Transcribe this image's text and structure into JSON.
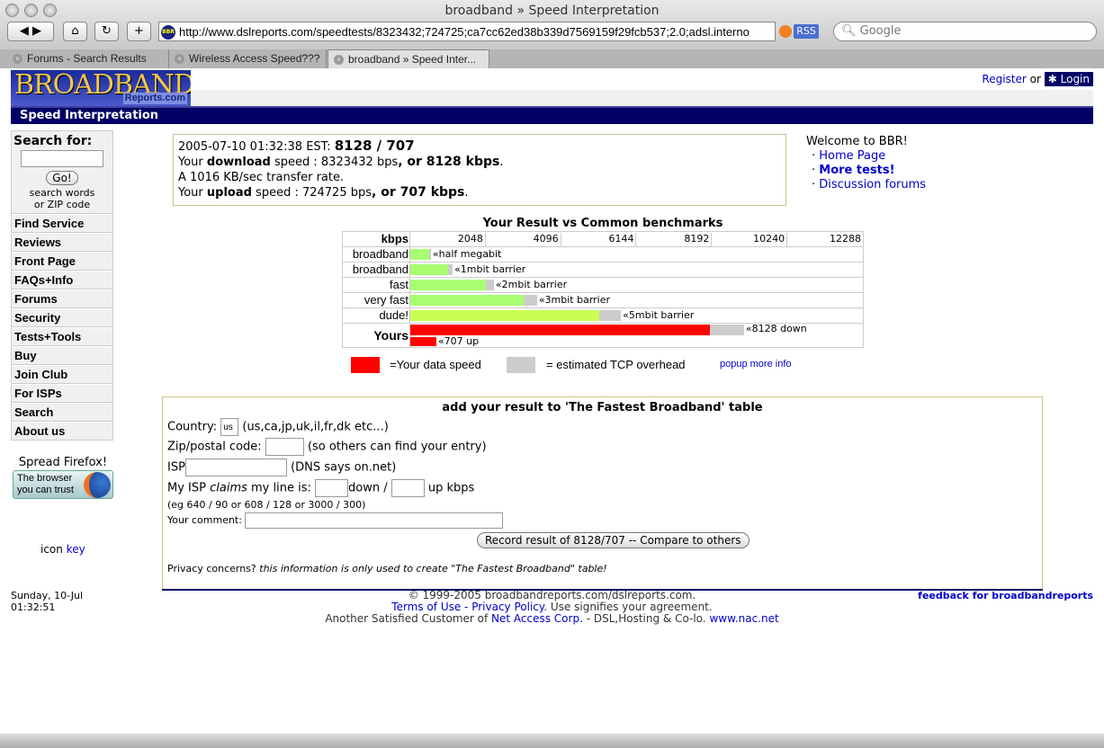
{
  "browser": {
    "title": "broadband » Speed Interpretation",
    "url": "http://www.dslreports.com/speedtests/8323432;724725;ca7cc62ed38b339d7569159f29fcb537;2.0;adsl.interno",
    "rss": "RSS",
    "search_placeholder": "Google",
    "site_icon": "BBR",
    "tabs": [
      {
        "label": "Forums - Search Results"
      },
      {
        "label": "Wireless Access Speed???"
      },
      {
        "label": "broadband » Speed Inter..."
      }
    ]
  },
  "header": {
    "logo_text": "BROADBAND",
    "logo_sub": "Reports.com",
    "page_title": "Speed Interpretation",
    "register": "Register",
    "or": "or",
    "login": "Login"
  },
  "sidebar": {
    "search_label": "Search for:",
    "go": "Go!",
    "hint1": "search words",
    "hint2": "or ZIP code",
    "items": [
      {
        "label": "Find Service"
      },
      {
        "label": "Reviews"
      },
      {
        "label": "Front Page"
      },
      {
        "label": "FAQs+Info"
      },
      {
        "label": "Forums"
      },
      {
        "label": "Security"
      },
      {
        "label": "Tests+Tools"
      },
      {
        "label": "Buy"
      },
      {
        "label": "Join Club"
      },
      {
        "label": "For ISPs"
      },
      {
        "label": "Search"
      },
      {
        "label": "About us"
      }
    ],
    "firefox_title": "Spread Firefox!",
    "firefox_line1": "The browser",
    "firefox_line2": "you can trust",
    "icon": "icon",
    "key": "key"
  },
  "result": {
    "timestamp": "2005-07-10 01:32:38 EST:",
    "summary": "8128 / 707",
    "dl_pre": "Your ",
    "dl_bold": "download",
    "dl_mid": " speed : 8323432 bps",
    "dl_end": ", or 8128 kbps",
    "rate": "A 1016 KB/sec transfer rate.",
    "ul_pre": "Your ",
    "ul_bold": "upload",
    "ul_mid": " speed : 724725 bps",
    "ul_end": ", or 707 kbps"
  },
  "welcome": {
    "title": "Welcome to BBR!",
    "links": [
      {
        "label": "Home Page"
      },
      {
        "label": "More tests!"
      },
      {
        "label": "Discussion forums"
      }
    ]
  },
  "chart_data": {
    "type": "bar",
    "title": "Your Result vs Common benchmarks",
    "xlabel": "kbps",
    "xlim": [
      0,
      12288
    ],
    "ticks": [
      "2048",
      "4096",
      "6144",
      "8192",
      "10240",
      "12288"
    ],
    "colors": {
      "benchmark": "#a8ff70",
      "dude": "#c8ff50",
      "yours": "#ff0000",
      "overhead": "#cccccc"
    },
    "rows": [
      {
        "label": "broadband",
        "value": 512,
        "with_overhead": 560,
        "annotation": "«half megabit"
      },
      {
        "label": "broadband",
        "value": 1024,
        "with_overhead": 1150,
        "annotation": "«1mbit barrier"
      },
      {
        "label": "fast",
        "value": 2048,
        "with_overhead": 2270,
        "annotation": "«2mbit barrier"
      },
      {
        "label": "very fast",
        "value": 3072,
        "with_overhead": 3440,
        "annotation": "«3mbit barrier"
      },
      {
        "label": "dude!",
        "value": 5120,
        "with_overhead": 5720,
        "annotation": "«5mbit barrier"
      }
    ],
    "yours": {
      "label": "Yours",
      "down": 8128,
      "down_with_overhead": 9060,
      "down_annotation": "«8128 down",
      "up": 707,
      "up_annotation": "«707 up"
    },
    "legend": {
      "data": "=Your data speed",
      "overhead": "= estimated TCP overhead",
      "popup": "popup more info"
    }
  },
  "form": {
    "title": "add your result to 'The Fastest Broadband' table",
    "country_label": "Country:",
    "country_value": "us",
    "country_hint": "(us,ca,jp,uk,il,fr,dk etc...)",
    "zip_label": "Zip/postal code:",
    "zip_hint": "(so others can find your entry)",
    "isp_label": "ISP",
    "isp_hint": "(DNS says on.net)",
    "claims_pre": "My ISP ",
    "claims_em": "claims",
    "claims_post": " my line is:",
    "down": "down /",
    "up": "up kbps",
    "example": "(eg 640 / 90 or 608 / 128 or 3000 / 300)",
    "comment_label": "Your comment:",
    "record_button": "Record result of 8128/707 -- Compare to others",
    "privacy_pre": "Privacy concerns? ",
    "privacy_em": "this information is only used to create \"The Fastest Broadband\" table!"
  },
  "footer": {
    "date": "Sunday, 10-Jul",
    "time": "01:32:51",
    "copyright": "© 1999-2005 broadbandreports.com/dslreports.com.",
    "terms": "Terms of Use",
    "dash": " - ",
    "privacy": "Privacy Policy",
    "agree": ". Use signifies your agreement.",
    "customer": "Another Satisfied Customer of ",
    "nac": "Net Access Corp.",
    "hosting": " - DSL,Hosting & Co-lo. ",
    "nacurl": "www.nac.net",
    "feedback": "feedback for broadbandreports"
  }
}
